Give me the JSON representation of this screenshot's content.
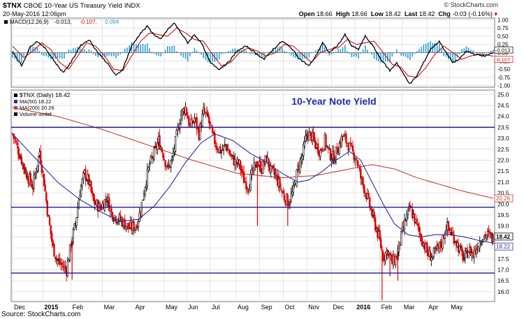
{
  "header": {
    "symbol": "$TNX",
    "name": "CBOE 10-Year US Treasury Yield",
    "exchange": "INDX",
    "datetime": "20-May-2016 12:06pm",
    "brand": "© StockCharts.com",
    "open_label": "Open",
    "open": "18.66",
    "high_label": "High",
    "high": "18.66",
    "low_label": "Low",
    "low": "18.42",
    "last_label": "Last",
    "last": "18.42",
    "chg_label": "Chg",
    "chg": "-0.03 (-0.16%)"
  },
  "source": "Source: StockCharts.com",
  "colors": {
    "up_bar": "#000000",
    "down_bar": "#e00000",
    "ma50": "#2b2f9a",
    "ma200": "#c4403f",
    "macd": "#000000",
    "signal": "#d01010",
    "hist": "#2e9fd4",
    "hline": "#1a1a8c",
    "grid": "#d9d9d9",
    "title": "#1c2fa8"
  },
  "chart_data": [
    {
      "type": "line",
      "panel": "MACD",
      "legend": [
        "MACD(12,26,9)",
        "-0.013,",
        "-0.107,",
        "0.094"
      ],
      "yticks": [
        -1.0,
        -0.75,
        -0.5,
        -0.25,
        0.0,
        0.25,
        0.5,
        0.75,
        1.0
      ],
      "ytick_labels": [
        "-1.00",
        "-0.75",
        "-0.50",
        "-0.25",
        "0.00",
        "0.25",
        "0.50",
        "0.75",
        "1.00"
      ],
      "ylim": [
        -1.05,
        1.05
      ],
      "value_labels": [
        "-0.013",
        "-0.107"
      ],
      "macd_anchors": [
        [
          0,
          0.05
        ],
        [
          8,
          -0.4
        ],
        [
          16,
          0.2
        ],
        [
          22,
          0.35
        ],
        [
          30,
          0.1
        ],
        [
          38,
          -0.3
        ],
        [
          45,
          -0.6
        ],
        [
          52,
          -0.3
        ],
        [
          60,
          0.2
        ],
        [
          68,
          0.4
        ],
        [
          76,
          0.0
        ],
        [
          84,
          -0.3
        ],
        [
          92,
          -0.7
        ],
        [
          98,
          -0.5
        ],
        [
          106,
          0.2
        ],
        [
          114,
          0.6
        ],
        [
          120,
          0.8
        ],
        [
          126,
          0.55
        ],
        [
          132,
          0.4
        ],
        [
          138,
          0.7
        ],
        [
          144,
          0.9
        ],
        [
          150,
          0.6
        ],
        [
          156,
          0.3
        ],
        [
          162,
          0.55
        ],
        [
          168,
          0.3
        ],
        [
          176,
          -0.3
        ],
        [
          184,
          -0.5
        ],
        [
          192,
          -0.3
        ],
        [
          200,
          0.05
        ],
        [
          208,
          0.2
        ],
        [
          216,
          0.0
        ],
        [
          224,
          -0.2
        ],
        [
          232,
          0.1
        ],
        [
          240,
          0.35
        ],
        [
          248,
          0.15
        ],
        [
          256,
          -0.2
        ],
        [
          264,
          -0.4
        ],
        [
          270,
          -0.1
        ],
        [
          276,
          0.3
        ],
        [
          282,
          0.0
        ],
        [
          290,
          0.25
        ],
        [
          296,
          0.55
        ],
        [
          302,
          0.2
        ],
        [
          308,
          0.1
        ],
        [
          314,
          0.5
        ],
        [
          320,
          0.25
        ],
        [
          328,
          -0.2
        ],
        [
          336,
          -0.55
        ],
        [
          342,
          -0.3
        ],
        [
          348,
          -0.65
        ],
        [
          354,
          -0.95
        ],
        [
          360,
          -0.7
        ],
        [
          366,
          -0.3
        ],
        [
          372,
          0.1
        ],
        [
          380,
          0.35
        ],
        [
          386,
          0.0
        ],
        [
          392,
          -0.3
        ],
        [
          398,
          -0.2
        ],
        [
          404,
          0.05
        ],
        [
          412,
          -0.05
        ],
        [
          420,
          -0.1
        ],
        [
          428,
          -0.013
        ]
      ],
      "signal_anchors": [
        [
          0,
          0.2
        ],
        [
          10,
          -0.15
        ],
        [
          18,
          0.05
        ],
        [
          26,
          0.3
        ],
        [
          34,
          0.1
        ],
        [
          42,
          -0.3
        ],
        [
          50,
          -0.5
        ],
        [
          58,
          -0.1
        ],
        [
          66,
          0.3
        ],
        [
          74,
          0.2
        ],
        [
          82,
          -0.1
        ],
        [
          90,
          -0.5
        ],
        [
          98,
          -0.55
        ],
        [
          106,
          -0.1
        ],
        [
          114,
          0.35
        ],
        [
          122,
          0.6
        ],
        [
          130,
          0.55
        ],
        [
          138,
          0.5
        ],
        [
          146,
          0.75
        ],
        [
          154,
          0.6
        ],
        [
          162,
          0.4
        ],
        [
          170,
          0.35
        ],
        [
          178,
          -0.05
        ],
        [
          186,
          -0.4
        ],
        [
          194,
          -0.3
        ],
        [
          202,
          0.0
        ],
        [
          210,
          0.15
        ],
        [
          218,
          0.05
        ],
        [
          226,
          -0.1
        ],
        [
          234,
          0.0
        ],
        [
          242,
          0.25
        ],
        [
          250,
          0.2
        ],
        [
          258,
          -0.05
        ],
        [
          266,
          -0.3
        ],
        [
          274,
          0.0
        ],
        [
          282,
          0.1
        ],
        [
          290,
          0.15
        ],
        [
          298,
          0.4
        ],
        [
          306,
          0.25
        ],
        [
          314,
          0.3
        ],
        [
          322,
          0.35
        ],
        [
          330,
          0.0
        ],
        [
          338,
          -0.35
        ],
        [
          346,
          -0.45
        ],
        [
          352,
          -0.7
        ],
        [
          360,
          -0.75
        ],
        [
          368,
          -0.45
        ],
        [
          376,
          -0.05
        ],
        [
          384,
          0.2
        ],
        [
          392,
          0.0
        ],
        [
          400,
          -0.2
        ],
        [
          408,
          -0.1
        ],
        [
          416,
          -0.05
        ],
        [
          424,
          -0.08
        ],
        [
          428,
          -0.107
        ]
      ]
    },
    {
      "type": "candlestick",
      "panel": "price",
      "title": "10-Year Note Yield",
      "legend": [
        "$TNX (Daily) 18.42",
        "MA(50) 18.22",
        "MA(200) 20.26",
        "Volume undef"
      ],
      "yticks": [
        16.0,
        16.5,
        17.0,
        17.5,
        18.0,
        18.5,
        19.0,
        19.5,
        20.0,
        20.5,
        21.0,
        21.5,
        22.0,
        22.5,
        23.0,
        23.5,
        24.0,
        24.5,
        25.0
      ],
      "ytick_labels": [
        "16.0",
        "16.5",
        "17.0",
        "17.5",
        "18.0",
        "18.5",
        "19.0",
        "19.5",
        "20.0",
        "20.5",
        "21.0",
        "21.5",
        "22.0",
        "22.5",
        "23.0",
        "23.5",
        "24.0",
        "24.5",
        "25.0"
      ],
      "ylim": [
        15.55,
        25.2
      ],
      "horizontal_lines": [
        23.5,
        19.85,
        16.85
      ],
      "x_axis_labels": [
        "Dec",
        "2015",
        "Feb",
        "Mar",
        "Apr",
        "May",
        "Jun",
        "Jul",
        "Aug",
        "Sep",
        "Oct",
        "Nov",
        "Dec",
        "2016",
        "Feb",
        "Mar",
        "Apr",
        "May"
      ],
      "x_axis_bold": [
        "2015",
        "2016"
      ],
      "x_axis_days": [
        0,
        27,
        52,
        80,
        108,
        135,
        155,
        176,
        199,
        220,
        241,
        262,
        284,
        305,
        327,
        347,
        369,
        389
      ],
      "total_days": 428,
      "price_labels": [
        "18.42",
        "18.22",
        "20.26"
      ],
      "close_anchors": [
        [
          0,
          23.2
        ],
        [
          6,
          22.3
        ],
        [
          12,
          21.4
        ],
        [
          18,
          20.8
        ],
        [
          24,
          22.4
        ],
        [
          28,
          21.0
        ],
        [
          32,
          19.3
        ],
        [
          36,
          18.0
        ],
        [
          40,
          17.4
        ],
        [
          44,
          17.2
        ],
        [
          48,
          17.0
        ],
        [
          52,
          18.2
        ],
        [
          56,
          19.1
        ],
        [
          60,
          20.6
        ],
        [
          64,
          21.4
        ],
        [
          68,
          21.0
        ],
        [
          72,
          20.1
        ],
        [
          78,
          19.8
        ],
        [
          84,
          20.3
        ],
        [
          88,
          19.6
        ],
        [
          92,
          19.4
        ],
        [
          98,
          19.2
        ],
        [
          104,
          18.9
        ],
        [
          110,
          19.0
        ],
        [
          114,
          19.7
        ],
        [
          118,
          20.9
        ],
        [
          122,
          21.8
        ],
        [
          126,
          22.3
        ],
        [
          130,
          22.9
        ],
        [
          134,
          22.3
        ],
        [
          138,
          21.6
        ],
        [
          142,
          22.0
        ],
        [
          146,
          23.1
        ],
        [
          150,
          24.1
        ],
        [
          154,
          24.4
        ],
        [
          158,
          23.5
        ],
        [
          162,
          23.9
        ],
        [
          166,
          23.2
        ],
        [
          170,
          24.2
        ],
        [
          174,
          23.9
        ],
        [
          178,
          23.1
        ],
        [
          182,
          22.6
        ],
        [
          186,
          22.4
        ],
        [
          190,
          22.7
        ],
        [
          194,
          22.2
        ],
        [
          198,
          21.9
        ],
        [
          202,
          21.8
        ],
        [
          206,
          21.1
        ],
        [
          210,
          20.8
        ],
        [
          214,
          21.5
        ],
        [
          218,
          21.9
        ],
        [
          222,
          21.6
        ],
        [
          226,
          22.1
        ],
        [
          230,
          21.5
        ],
        [
          234,
          21.3
        ],
        [
          238,
          20.8
        ],
        [
          242,
          20.3
        ],
        [
          246,
          20.1
        ],
        [
          250,
          20.6
        ],
        [
          254,
          21.6
        ],
        [
          258,
          22.2
        ],
        [
          262,
          23.2
        ],
        [
          266,
          23.1
        ],
        [
          270,
          22.7
        ],
        [
          274,
          22.4
        ],
        [
          278,
          22.9
        ],
        [
          282,
          22.3
        ],
        [
          286,
          22.1
        ],
        [
          290,
          22.6
        ],
        [
          294,
          23.1
        ],
        [
          298,
          22.8
        ],
        [
          302,
          22.4
        ],
        [
          306,
          22.1
        ],
        [
          310,
          21.2
        ],
        [
          314,
          20.6
        ],
        [
          318,
          19.9
        ],
        [
          322,
          19.2
        ],
        [
          326,
          18.5
        ],
        [
          330,
          17.6
        ],
        [
          334,
          17.9
        ],
        [
          338,
          17.3
        ],
        [
          342,
          17.6
        ],
        [
          346,
          18.5
        ],
        [
          350,
          19.3
        ],
        [
          354,
          19.8
        ],
        [
          358,
          19.3
        ],
        [
          362,
          18.7
        ],
        [
          366,
          18.2
        ],
        [
          370,
          17.7
        ],
        [
          374,
          17.6
        ],
        [
          378,
          17.9
        ],
        [
          382,
          18.2
        ],
        [
          386,
          19.0
        ],
        [
          390,
          18.7
        ],
        [
          394,
          18.4
        ],
        [
          398,
          17.9
        ],
        [
          402,
          17.5
        ],
        [
          406,
          17.9
        ],
        [
          410,
          17.7
        ],
        [
          414,
          18.1
        ],
        [
          418,
          18.5
        ],
        [
          422,
          18.6
        ],
        [
          428,
          18.42
        ]
      ],
      "ma50_anchors": [
        [
          0,
          23.2
        ],
        [
          20,
          22.1
        ],
        [
          40,
          21.0
        ],
        [
          60,
          20.2
        ],
        [
          80,
          19.6
        ],
        [
          96,
          19.2
        ],
        [
          112,
          19.3
        ],
        [
          126,
          19.9
        ],
        [
          140,
          20.8
        ],
        [
          154,
          21.9
        ],
        [
          168,
          22.8
        ],
        [
          180,
          23.2
        ],
        [
          196,
          22.9
        ],
        [
          212,
          22.3
        ],
        [
          226,
          21.9
        ],
        [
          240,
          21.4
        ],
        [
          254,
          21.0
        ],
        [
          264,
          21.1
        ],
        [
          276,
          21.5
        ],
        [
          288,
          22.0
        ],
        [
          300,
          22.4
        ],
        [
          310,
          22.0
        ],
        [
          320,
          21.0
        ],
        [
          330,
          20.0
        ],
        [
          340,
          19.1
        ],
        [
          352,
          18.6
        ],
        [
          364,
          18.5
        ],
        [
          376,
          18.6
        ],
        [
          390,
          18.6
        ],
        [
          402,
          18.5
        ],
        [
          414,
          18.35
        ],
        [
          428,
          18.22
        ]
      ],
      "ma200_anchors": [
        [
          0,
          24.4
        ],
        [
          40,
          24.0
        ],
        [
          80,
          23.4
        ],
        [
          120,
          22.7
        ],
        [
          160,
          22.0
        ],
        [
          200,
          21.4
        ],
        [
          240,
          21.2
        ],
        [
          270,
          21.3
        ],
        [
          300,
          21.6
        ],
        [
          320,
          21.8
        ],
        [
          340,
          21.6
        ],
        [
          360,
          21.2
        ],
        [
          380,
          20.9
        ],
        [
          400,
          20.6
        ],
        [
          428,
          20.26
        ]
      ],
      "spikes": [
        [
          53,
          16.55
        ],
        [
          218,
          19.0
        ],
        [
          245,
          19.0
        ],
        [
          329,
          15.6
        ],
        [
          336,
          16.7
        ],
        [
          343,
          16.5
        ]
      ]
    }
  ]
}
